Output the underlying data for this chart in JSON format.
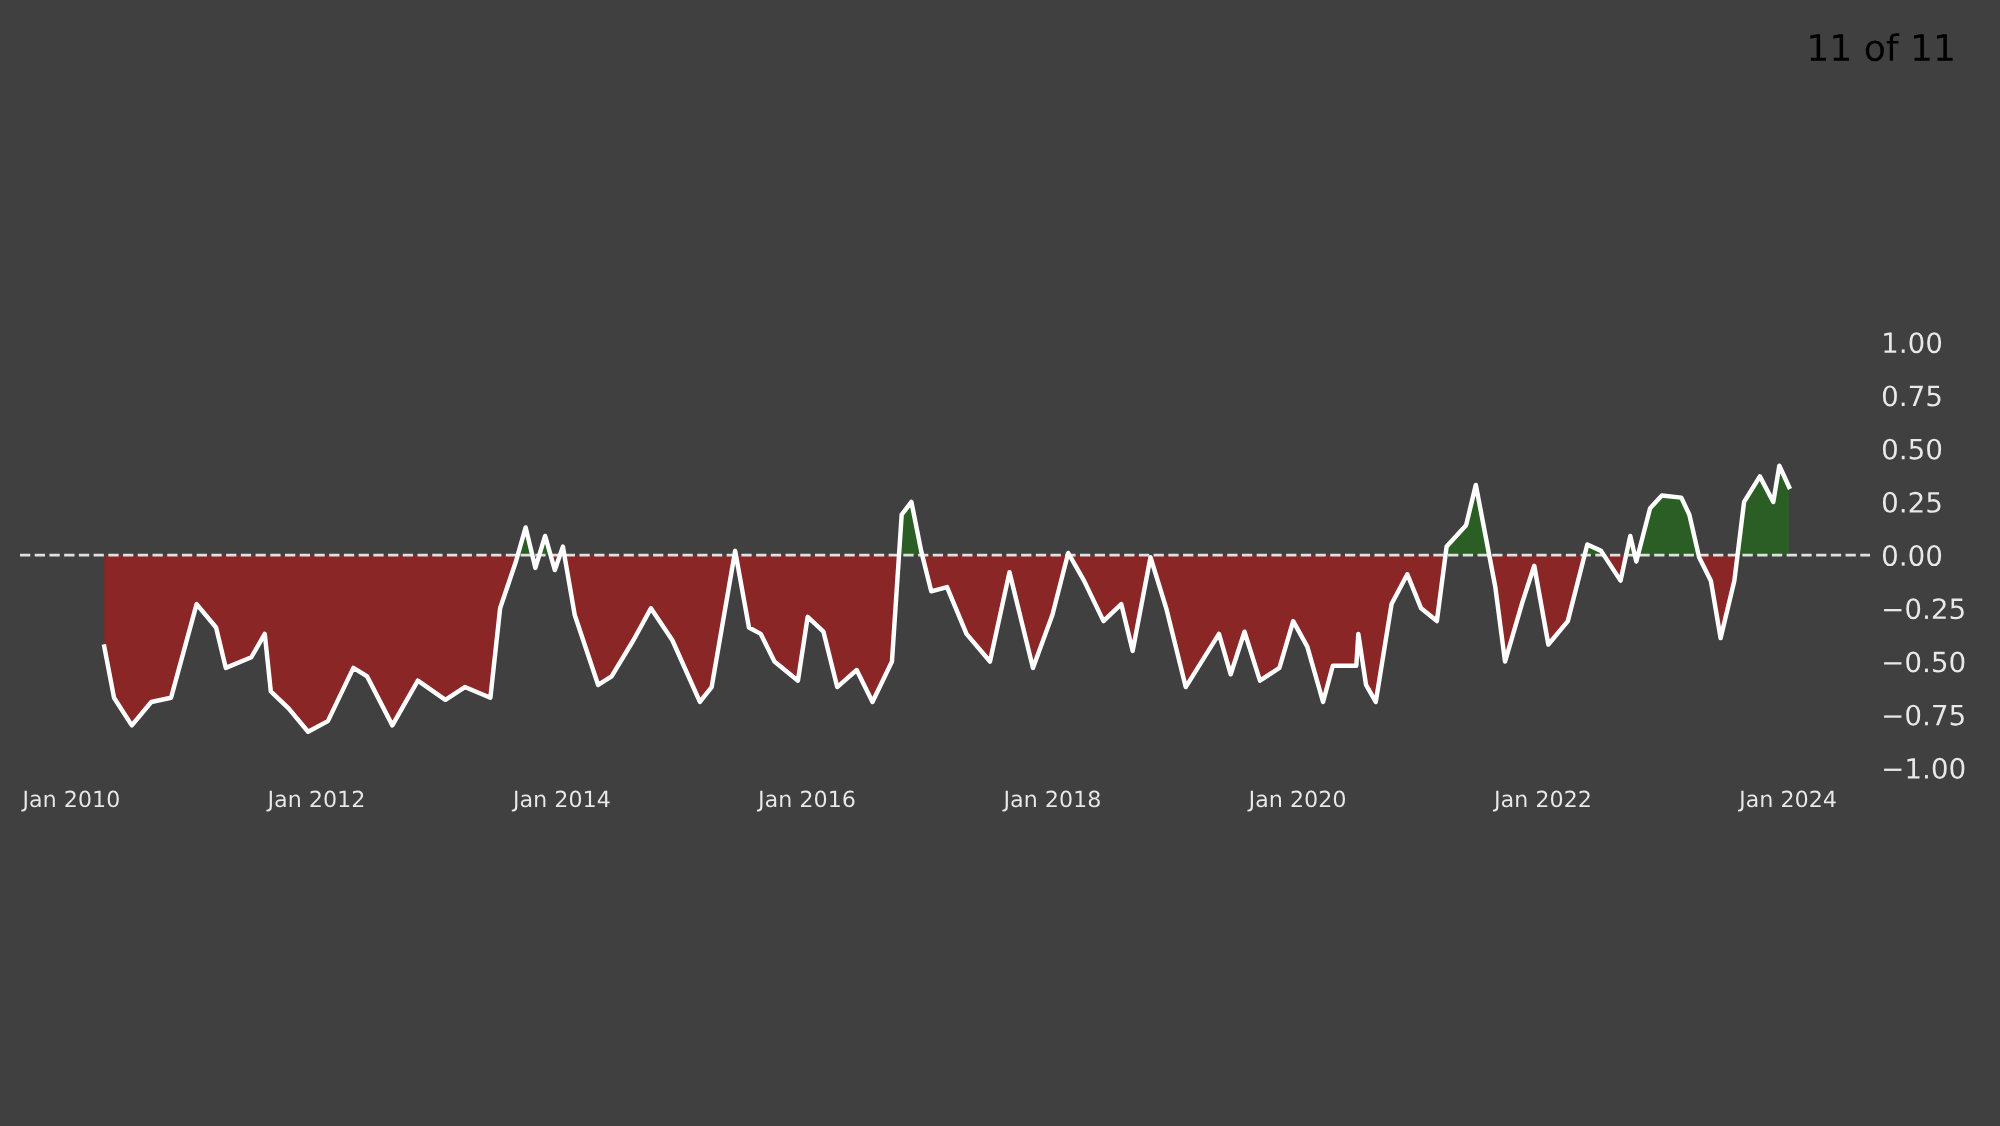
{
  "chart_data": {
    "type": "area",
    "annotations": [
      "11 of 11"
    ],
    "x": [
      "2010-04-09",
      "2010-05-08",
      "2010-06-30",
      "2010-08-27",
      "2010-10-25",
      "2011-01-09",
      "2011-03-08",
      "2011-04-06",
      "2011-06-21",
      "2011-07-31",
      "2011-08-18",
      "2011-10-10",
      "2011-12-07",
      "2012-02-04",
      "2012-04-20",
      "2012-05-31",
      "2012-08-14",
      "2012-10-29",
      "2013-01-19",
      "2013-03-18",
      "2013-06-02",
      "2013-07-01",
      "2013-08-17",
      "2013-09-15",
      "2013-10-14",
      "2013-11-12",
      "2013-12-11",
      "2014-01-04",
      "2014-02-08",
      "2014-04-19",
      "2014-05-29",
      "2014-08-02",
      "2014-09-23",
      "2014-11-26",
      "2015-02-16",
      "2015-03-23",
      "2015-06-01",
      "2015-07-12",
      "2015-08-16",
      "2015-09-26",
      "2015-12-05",
      "2016-01-03",
      "2016-02-19",
      "2016-03-31",
      "2016-05-28",
      "2016-07-14",
      "2016-09-10",
      "2016-10-09",
      "2016-11-07",
      "2016-12-06",
      "2017-01-05",
      "2017-02-21",
      "2017-04-20",
      "2017-06-29",
      "2017-08-26",
      "2017-11-04",
      "2018-01-01",
      "2018-02-17",
      "2018-04-05",
      "2018-06-02",
      "2018-07-25",
      "2018-08-28",
      "2018-10-20",
      "2018-12-06",
      "2019-02-02",
      "2019-05-12",
      "2019-06-16",
      "2019-07-27",
      "2019-09-11",
      "2019-11-08",
      "2019-12-19",
      "2020-01-30",
      "2020-03-17",
      "2020-04-15",
      "2020-06-24",
      "2020-06-30",
      "2020-07-23",
      "2020-08-21",
      "2020-10-07",
      "2020-11-23",
      "2021-01-03",
      "2021-02-19",
      "2021-03-20",
      "2021-05-17",
      "2021-06-15",
      "2021-07-14",
      "2021-08-12",
      "2021-09-10",
      "2021-11-01",
      "2021-12-06",
      "2022-01-17",
      "2022-03-16",
      "2022-05-13",
      "2022-06-23",
      "2022-08-20",
      "2022-09-18",
      "2022-10-06",
      "2022-11-16",
      "2022-12-21",
      "2023-02-17",
      "2023-03-13",
      "2023-04-11",
      "2023-05-16",
      "2023-06-14",
      "2023-07-25",
      "2023-08-23",
      "2023-10-09",
      "2023-11-18",
      "2023-12-06",
      "2024-01-04"
    ],
    "series": [
      {
        "color": "#ffffff",
        "values": [
          -0.43,
          -0.67,
          -0.8,
          -0.69,
          -0.67,
          -0.23,
          -0.34,
          -0.53,
          -0.48,
          -0.37,
          -0.64,
          -0.72,
          -0.83,
          -0.78,
          -0.53,
          -0.57,
          -0.8,
          -0.59,
          -0.68,
          -0.62,
          -0.67,
          -0.25,
          -0.03,
          0.13,
          -0.06,
          0.09,
          -0.07,
          0.04,
          -0.28,
          -0.61,
          -0.57,
          -0.4,
          -0.25,
          -0.4,
          -0.69,
          -0.62,
          0.02,
          -0.34,
          -0.37,
          -0.5,
          -0.59,
          -0.29,
          -0.36,
          -0.62,
          -0.54,
          -0.69,
          -0.5,
          0.19,
          0.25,
          0.02,
          -0.17,
          -0.15,
          -0.37,
          -0.5,
          -0.08,
          -0.53,
          -0.28,
          0.01,
          -0.12,
          -0.31,
          -0.23,
          -0.45,
          -0.01,
          -0.25,
          -0.62,
          -0.37,
          -0.56,
          -0.36,
          -0.59,
          -0.53,
          -0.31,
          -0.43,
          -0.69,
          -0.52,
          -0.52,
          -0.37,
          -0.61,
          -0.69,
          -0.23,
          -0.09,
          -0.25,
          -0.31,
          0.04,
          0.14,
          0.33,
          0.09,
          -0.15,
          -0.5,
          -0.22,
          -0.05,
          -0.42,
          -0.31,
          0.05,
          0.02,
          -0.12,
          0.09,
          -0.03,
          0.22,
          0.28,
          0.27,
          0.19,
          -0.01,
          -0.12,
          -0.39,
          -0.12,
          0.25,
          0.37,
          0.25,
          0.42,
          0.32
        ],
        "colors": [
          "#8b2626",
          "#8b2626",
          "#8b2626",
          "#8b2626",
          "#8b2626",
          "#8b2626",
          "#8b2626",
          "#8b2626",
          "#8b2626",
          "#8b2626",
          "#8b2626",
          "#8b2626",
          "#8b2626",
          "#8b2626",
          "#8b2626",
          "#8b2626",
          "#8b2626",
          "#8b2626",
          "#8b2626",
          "#8b2626",
          "#8b2626",
          "#8b2626",
          "#8b2626",
          "#2b5e25",
          "#8b2626",
          "#2b5e25",
          "#8b2626",
          "#2b5e25",
          "#8b2626",
          "#8b2626",
          "#8b2626",
          "#8b2626",
          "#8b2626",
          "#8b2626",
          "#8b2626",
          "#8b2626",
          "#2b5e25",
          "#8b2626",
          "#8b2626",
          "#8b2626",
          "#8b2626",
          "#8b2626",
          "#8b2626",
          "#8b2626",
          "#8b2626",
          "#8b2626",
          "#8b2626",
          "#2b5e25",
          "#2b5e25",
          "#2b5e25",
          "#8b2626",
          "#8b2626",
          "#8b2626",
          "#8b2626",
          "#8b2626",
          "#8b2626",
          "#8b2626",
          "#2b5e25",
          "#8b2626",
          "#8b2626",
          "#8b2626",
          "#8b2626",
          "#8b2626",
          "#8b2626",
          "#8b2626",
          "#8b2626",
          "#8b2626",
          "#8b2626",
          "#8b2626",
          "#8b2626",
          "#8b2626",
          "#8b2626",
          "#8b2626",
          "#8b2626",
          "#8b2626",
          "#8b2626",
          "#8b2626",
          "#8b2626",
          "#8b2626",
          "#8b2626",
          "#8b2626",
          "#8b2626",
          "#2b5e25",
          "#2b5e25",
          "#2b5e25",
          "#2b5e25",
          "#8b2626",
          "#8b2626",
          "#8b2626",
          "#8b2626",
          "#8b2626",
          "#8b2626",
          "#2b5e25",
          "#2b5e25",
          "#8b2626",
          "#2b5e25",
          "#8b2626",
          "#2b5e25",
          "#2b5e25",
          "#2b5e25",
          "#2b5e25",
          "#8b2626",
          "#8b2626",
          "#8b2626",
          "#8b2626",
          "#2b5e25",
          "#2b5e25",
          "#2b5e25",
          "#2b5e25",
          "#2b5e25"
        ]
      }
    ],
    "xlim": [
      "2009-08-01",
      "2024-09-01"
    ],
    "xticks": [
      {
        "value": "2010-01-01",
        "label": "Jan 2010"
      },
      {
        "value": "2012-01-01",
        "label": "Jan 2012"
      },
      {
        "value": "2014-01-01",
        "label": "Jan 2014"
      },
      {
        "value": "2016-01-01",
        "label": "Jan 2016"
      },
      {
        "value": "2018-01-01",
        "label": "Jan 2018"
      },
      {
        "value": "2020-01-01",
        "label": "Jan 2020"
      },
      {
        "value": "2022-01-01",
        "label": "Jan 2022"
      },
      {
        "value": "2024-01-01",
        "label": "Jan 2024"
      }
    ],
    "ylim": [
      -1,
      1
    ],
    "yticks": [
      {
        "value": 1,
        "label": "1.00"
      },
      {
        "value": 0.75,
        "label": "0.75"
      },
      {
        "value": 0.5,
        "label": "0.50"
      },
      {
        "value": 0.25,
        "label": "0.25"
      },
      {
        "value": 0,
        "label": "0.00"
      },
      {
        "value": -0.25,
        "label": "−0.25"
      },
      {
        "value": -0.5,
        "label": "−0.50"
      },
      {
        "value": -0.75,
        "label": "−0.75"
      },
      {
        "value": -1,
        "label": "−1.00"
      }
    ],
    "ref_lines": [
      {
        "axis": "y",
        "value": 0,
        "color": "#e0e0e0",
        "line_style": "dashed"
      }
    ],
    "grid": false,
    "legend": false
  }
}
